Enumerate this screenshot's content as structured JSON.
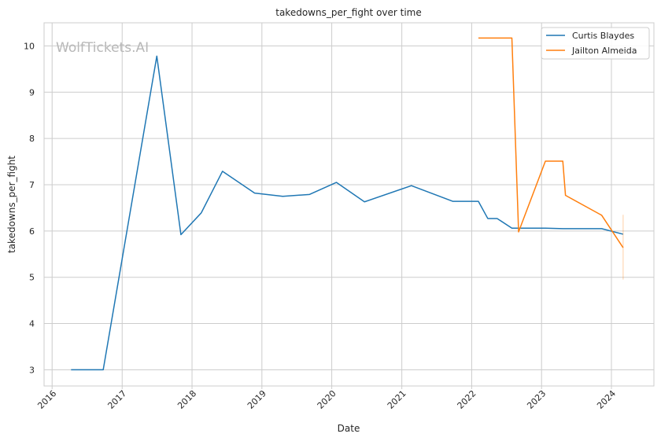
{
  "chart_data": {
    "type": "line",
    "title": "takedowns_per_fight over time",
    "xlabel": "Date",
    "ylabel": "takedowns_per_fight",
    "watermark": "WolfTickets.AI",
    "xlim": [
      "2015-11-20",
      "2024-08-10"
    ],
    "ylim": [
      2.65,
      10.5
    ],
    "x_ticks": [
      "2016-01-01",
      "2017-01-01",
      "2018-01-01",
      "2019-01-01",
      "2020-01-01",
      "2021-01-01",
      "2022-01-01",
      "2023-01-01",
      "2024-01-01"
    ],
    "x_tick_labels": [
      "2016",
      "2017",
      "2018",
      "2019",
      "2020",
      "2021",
      "2022",
      "2023",
      "2024"
    ],
    "y_ticks": [
      3,
      4,
      5,
      6,
      7,
      8,
      9,
      10
    ],
    "grid": true,
    "legend": "top-right",
    "series": [
      {
        "name": "Curtis Blaydes",
        "color": "#1f77b4",
        "points": [
          [
            "2016-04-09",
            3.0
          ],
          [
            "2016-09-24",
            3.0
          ],
          [
            "2017-07-01",
            9.78
          ],
          [
            "2017-11-04",
            5.92
          ],
          [
            "2018-02-18",
            6.39
          ],
          [
            "2018-06-09",
            7.29
          ],
          [
            "2018-11-24",
            6.82
          ],
          [
            "2019-04-20",
            6.75
          ],
          [
            "2019-09-07",
            6.79
          ],
          [
            "2020-01-25",
            7.05
          ],
          [
            "2020-06-20",
            6.63
          ],
          [
            "2021-02-20",
            6.98
          ],
          [
            "2021-09-25",
            6.64
          ],
          [
            "2022-02-05",
            6.64
          ],
          [
            "2022-03-26",
            6.27
          ],
          [
            "2022-05-14",
            6.27
          ],
          [
            "2022-07-30",
            6.06
          ],
          [
            "2022-09-03",
            6.06
          ],
          [
            "2023-01-21",
            6.06
          ],
          [
            "2023-04-22",
            6.05
          ],
          [
            "2023-11-11",
            6.05
          ],
          [
            "2024-03-02",
            5.93
          ]
        ]
      },
      {
        "name": "Jailton Almeida",
        "color": "#ff7f0e",
        "points": [
          [
            "2022-02-05",
            10.17
          ],
          [
            "2022-07-30",
            10.17
          ],
          [
            "2022-09-03",
            5.98
          ],
          [
            "2023-01-21",
            7.51
          ],
          [
            "2023-04-22",
            7.51
          ],
          [
            "2023-05-06",
            6.77
          ],
          [
            "2023-11-11",
            6.34
          ],
          [
            "2024-03-02",
            5.64
          ]
        ],
        "error_band": {
          "x": "2024-03-02",
          "low": 4.95,
          "high": 6.35
        }
      }
    ]
  }
}
